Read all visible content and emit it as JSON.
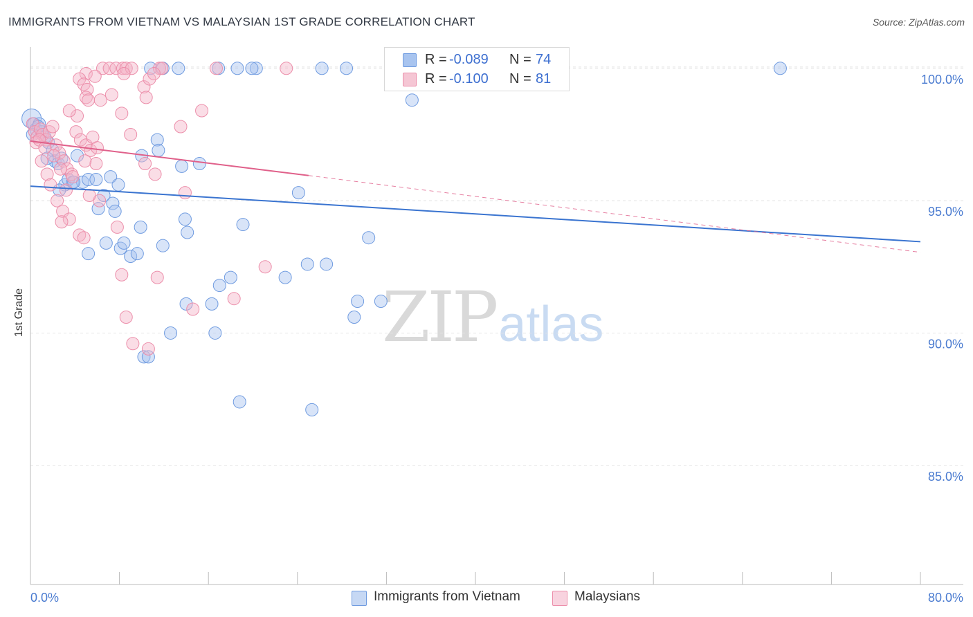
{
  "title": "IMMIGRANTS FROM VIETNAM VS MALAYSIAN 1ST GRADE CORRELATION CHART",
  "source": "Source: ZipAtlas.com",
  "watermark": {
    "zip": "ZIP",
    "atlas": "atlas"
  },
  "legend": {
    "rows": [
      {
        "r_label": "R =",
        "r_value": "-0.089",
        "n_label": "N =",
        "n_value": "74",
        "color": "#a8c4ef"
      },
      {
        "r_label": "R =",
        "r_value": "-0.100",
        "n_label": "N =",
        "n_value": "81",
        "color": "#f5b3c7"
      }
    ]
  },
  "bottom_legend": [
    {
      "label": "Immigrants from Vietnam",
      "color": "#a8c4ef"
    },
    {
      "label": "Malaysians",
      "color": "#f5b3c7"
    }
  ],
  "chart_data": {
    "type": "scatter",
    "title": "IMMIGRANTS FROM VIETNAM VS MALAYSIAN 1ST GRADE CORRELATION CHART",
    "xlabel": "",
    "ylabel": "1st Grade",
    "xlim": [
      0,
      80
    ],
    "ylim": [
      80.5,
      100.7
    ],
    "x_tick_labels": [
      "0.0%",
      "80.0%"
    ],
    "y_ticks": [
      100,
      95,
      90,
      85
    ],
    "y_tick_labels": [
      "100.0%",
      "95.0%",
      "90.0%",
      "85.0%"
    ],
    "grid": true,
    "legend_position": "top-center",
    "series": [
      {
        "name": "Immigrants from Vietnam",
        "color": "#6f9be0",
        "fill": "#a8c4ef",
        "trend": {
          "x": [
            0,
            80
          ],
          "y": [
            95.55,
            93.45
          ],
          "style": "solid",
          "color": "#3a74d0"
        },
        "points": [
          [
            0.1,
            98.1
          ],
          [
            0.3,
            97.9
          ],
          [
            0.5,
            97.7
          ],
          [
            0.8,
            97.9
          ],
          [
            1.0,
            97.6
          ],
          [
            1.3,
            97.4
          ],
          [
            1.6,
            97.2
          ],
          [
            2.0,
            96.9
          ],
          [
            2.2,
            96.5
          ],
          [
            2.5,
            96.4
          ],
          [
            2.8,
            96.6
          ],
          [
            3.1,
            95.6
          ],
          [
            3.4,
            95.8
          ],
          [
            3.8,
            95.7
          ],
          [
            4.2,
            96.7
          ],
          [
            4.7,
            95.7
          ],
          [
            5.2,
            95.8
          ],
          [
            5.9,
            95.8
          ],
          [
            6.6,
            95.2
          ],
          [
            7.2,
            95.9
          ],
          [
            6.1,
            94.7
          ],
          [
            7.4,
            94.9
          ],
          [
            7.6,
            94.6
          ],
          [
            10.0,
            96.7
          ],
          [
            11.4,
            97.3
          ],
          [
            11.5,
            96.9
          ],
          [
            13.6,
            96.3
          ],
          [
            15.2,
            96.4
          ],
          [
            13.9,
            94.3
          ],
          [
            14.1,
            93.8
          ],
          [
            16.9,
            100.0
          ],
          [
            10.8,
            100.0
          ],
          [
            11.9,
            100.0
          ],
          [
            13.3,
            100.0
          ],
          [
            18.6,
            100.0
          ],
          [
            20.3,
            100.0
          ],
          [
            19.9,
            100.0
          ],
          [
            26.2,
            100.0
          ],
          [
            28.4,
            100.0
          ],
          [
            67.4,
            100.0
          ],
          [
            34.3,
            98.8
          ],
          [
            5.2,
            93.0
          ],
          [
            6.8,
            93.4
          ],
          [
            8.1,
            93.2
          ],
          [
            8.4,
            93.4
          ],
          [
            9.0,
            92.9
          ],
          [
            9.6,
            93.0
          ],
          [
            9.9,
            94.0
          ],
          [
            11.9,
            93.3
          ],
          [
            19.1,
            94.1
          ],
          [
            24.1,
            95.3
          ],
          [
            30.4,
            93.6
          ],
          [
            18.0,
            92.1
          ],
          [
            17.0,
            91.8
          ],
          [
            22.9,
            92.1
          ],
          [
            24.9,
            92.6
          ],
          [
            26.6,
            92.6
          ],
          [
            14.0,
            91.1
          ],
          [
            16.3,
            91.1
          ],
          [
            29.4,
            91.2
          ],
          [
            31.5,
            91.2
          ],
          [
            29.1,
            90.6
          ],
          [
            12.6,
            90.0
          ],
          [
            16.6,
            90.0
          ],
          [
            10.2,
            89.1
          ],
          [
            10.6,
            89.1
          ],
          [
            18.8,
            87.4
          ],
          [
            25.3,
            87.1
          ],
          [
            1.5,
            96.6
          ],
          [
            0.7,
            97.8
          ],
          [
            2.6,
            95.4
          ],
          [
            3.9,
            95.7
          ],
          [
            7.9,
            95.6
          ],
          [
            0.2,
            97.5
          ]
        ]
      },
      {
        "name": "Malaysians",
        "color": "#ec8eaa",
        "fill": "#f5b3c7",
        "trend": {
          "x": [
            0,
            25
          ],
          "y": [
            97.25,
            95.95
          ],
          "style": "solid",
          "color": "#e0608a",
          "ext": {
            "x": [
              25,
              80
            ],
            "y": [
              95.95,
              93.05
            ],
            "style": "dashed"
          }
        },
        "points": [
          [
            0.2,
            97.9
          ],
          [
            0.4,
            97.6
          ],
          [
            0.6,
            97.4
          ],
          [
            0.9,
            97.7
          ],
          [
            1.1,
            97.5
          ],
          [
            1.4,
            97.3
          ],
          [
            1.7,
            97.6
          ],
          [
            2.0,
            97.8
          ],
          [
            2.3,
            97.1
          ],
          [
            2.6,
            96.8
          ],
          [
            3.0,
            96.5
          ],
          [
            3.3,
            96.2
          ],
          [
            3.7,
            96.0
          ],
          [
            4.1,
            97.6
          ],
          [
            4.5,
            97.3
          ],
          [
            5.0,
            97.1
          ],
          [
            5.4,
            96.9
          ],
          [
            5.9,
            96.4
          ],
          [
            0.5,
            97.2
          ],
          [
            1.0,
            96.5
          ],
          [
            1.5,
            96.0
          ],
          [
            1.8,
            95.6
          ],
          [
            2.4,
            95.0
          ],
          [
            2.9,
            94.6
          ],
          [
            3.5,
            94.3
          ],
          [
            4.4,
            93.7
          ],
          [
            4.8,
            93.6
          ],
          [
            2.8,
            94.2
          ],
          [
            6.2,
            95.0
          ],
          [
            7.8,
            94.0
          ],
          [
            3.2,
            95.4
          ],
          [
            5.3,
            95.2
          ],
          [
            6.5,
            100.0
          ],
          [
            7.1,
            100.0
          ],
          [
            7.7,
            100.0
          ],
          [
            8.3,
            100.0
          ],
          [
            8.6,
            100.0
          ],
          [
            9.1,
            100.0
          ],
          [
            11.6,
            100.0
          ],
          [
            11.8,
            100.0
          ],
          [
            16.7,
            100.0
          ],
          [
            23.0,
            100.0
          ],
          [
            5.0,
            99.8
          ],
          [
            5.8,
            99.7
          ],
          [
            4.4,
            99.6
          ],
          [
            4.8,
            99.4
          ],
          [
            5.1,
            99.2
          ],
          [
            5.0,
            98.9
          ],
          [
            5.2,
            98.8
          ],
          [
            6.3,
            98.8
          ],
          [
            7.3,
            99.0
          ],
          [
            8.4,
            99.8
          ],
          [
            10.2,
            99.3
          ],
          [
            10.4,
            98.9
          ],
          [
            10.7,
            99.6
          ],
          [
            11.1,
            99.8
          ],
          [
            8.2,
            98.3
          ],
          [
            4.2,
            98.2
          ],
          [
            3.5,
            98.4
          ],
          [
            13.5,
            97.8
          ],
          [
            15.4,
            98.4
          ],
          [
            9.0,
            97.5
          ],
          [
            5.6,
            97.4
          ],
          [
            6.0,
            97.0
          ],
          [
            10.3,
            96.4
          ],
          [
            11.2,
            96.0
          ],
          [
            13.9,
            95.3
          ],
          [
            8.2,
            92.2
          ],
          [
            11.4,
            92.1
          ],
          [
            21.1,
            92.5
          ],
          [
            18.3,
            91.3
          ],
          [
            14.6,
            90.9
          ],
          [
            8.6,
            90.6
          ],
          [
            9.2,
            89.6
          ],
          [
            10.6,
            89.4
          ],
          [
            0.8,
            97.3
          ],
          [
            1.3,
            97.0
          ],
          [
            2.1,
            96.7
          ],
          [
            2.7,
            96.2
          ],
          [
            3.8,
            95.9
          ],
          [
            4.9,
            96.5
          ]
        ]
      }
    ]
  }
}
